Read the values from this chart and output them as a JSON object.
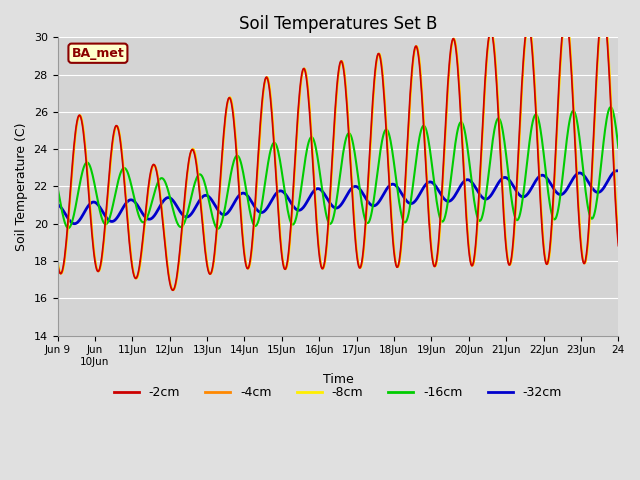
{
  "title": "Soil Temperatures Set B",
  "xlabel": "Time",
  "ylabel": "Soil Temperature (C)",
  "ylim": [
    14,
    30
  ],
  "yticks": [
    14,
    16,
    18,
    20,
    22,
    24,
    26,
    28,
    30
  ],
  "xtick_labels": [
    "Jun 9",
    "Jun\n10Jun",
    "11Jun",
    "12Jun",
    "13Jun",
    "14Jun",
    "15Jun",
    "16Jun",
    "17Jun",
    "18Jun",
    "19Jun",
    "20Jun",
    "21Jun",
    "22Jun",
    "23Jun",
    "24"
  ],
  "series": [
    {
      "label": "-2cm",
      "color": "#cc0000",
      "lw": 1.2
    },
    {
      "label": "-4cm",
      "color": "#ff8800",
      "lw": 1.2
    },
    {
      "label": "-8cm",
      "color": "#ffee00",
      "lw": 1.2
    },
    {
      "label": "-16cm",
      "color": "#00cc00",
      "lw": 1.5
    },
    {
      "label": "-32cm",
      "color": "#0000cc",
      "lw": 2.0
    }
  ],
  "annotation_text": "BA_met",
  "annotation_color": "#8b0000",
  "bg_color": "#e0e0e0",
  "plot_bg_color": "#d4d4d4",
  "n_days": 15,
  "samples_per_day": 48
}
